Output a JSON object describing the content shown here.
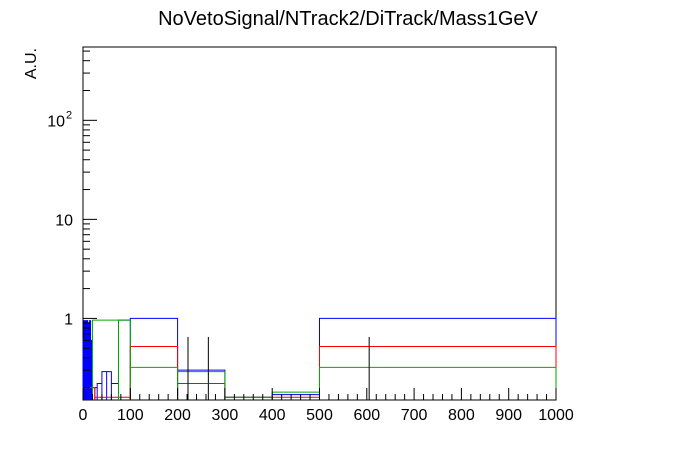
{
  "chart_data": {
    "type": "line",
    "title": "NoVetoSignal/NTrack2/DiTrack/Mass1GeV",
    "xlabel": "",
    "ylabel": "A.U.",
    "xlim": [
      0,
      1000
    ],
    "ylim": [
      0.15,
      550
    ],
    "y_scale": "log",
    "grid": false,
    "x_ticks": [
      "0",
      "100",
      "200",
      "300",
      "400",
      "500",
      "600",
      "700",
      "800",
      "900",
      "1000"
    ],
    "y_ticks": [
      {
        "value": 1,
        "label": "1"
      },
      {
        "value": 10,
        "label": "10"
      },
      {
        "value": 100,
        "label": "10",
        "sup": "2"
      }
    ],
    "series": [
      {
        "color": "#0000ff",
        "edges": [
          0,
          2,
          4,
          6,
          8,
          10,
          12,
          14,
          16,
          18,
          20,
          25,
          30,
          40,
          50,
          60,
          75,
          100,
          200,
          300,
          400,
          500,
          1000
        ],
        "values": [
          0.62,
          0.95,
          0.95,
          0.75,
          0.95,
          0.9,
          0.55,
          0.95,
          0.6,
          0.22,
          0.2,
          0.2,
          0.22,
          0.29,
          0.29,
          0.22,
          0.96,
          1.0,
          0.3,
          0.16,
          0.17,
          1.0
        ]
      },
      {
        "color": "#ff0000",
        "edges": [
          0,
          25,
          75,
          100,
          200,
          300,
          400,
          500,
          1000
        ],
        "values": [
          0.2,
          0.16,
          0.16,
          0.52,
          0.22,
          0.16,
          0.16,
          0.52
        ]
      },
      {
        "color": "#00aa00",
        "edges": [
          0,
          20,
          75,
          100,
          200,
          300,
          400,
          500,
          1000
        ],
        "values": [
          0.2,
          0.96,
          0.96,
          0.32,
          0.29,
          0.16,
          0.18,
          0.32
        ]
      }
    ],
    "error_markers": [
      {
        "x": 222,
        "low": 0.15,
        "high": 0.65
      },
      {
        "x": 265,
        "low": 0.15,
        "high": 0.65
      },
      {
        "x": 605,
        "low": 0.15,
        "high": 0.65
      }
    ]
  }
}
